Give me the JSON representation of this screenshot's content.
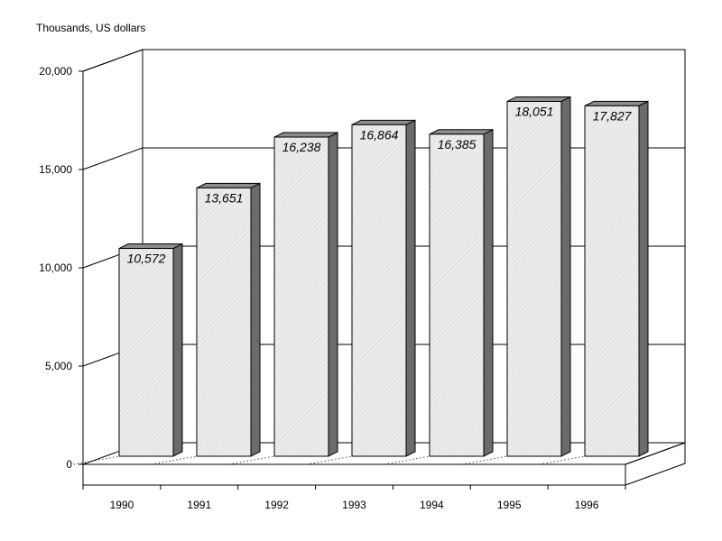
{
  "chart_data": {
    "type": "bar",
    "title": "",
    "unit_label": "Thousands, US dollars",
    "xlabel": "",
    "ylabel": "Thousands, US dollars",
    "categories": [
      "1990",
      "1991",
      "1992",
      "1993",
      "1994",
      "1995",
      "1996"
    ],
    "values": [
      10572,
      13651,
      16238,
      16864,
      16385,
      18051,
      17827
    ],
    "value_labels": [
      "10,572",
      "13,651",
      "16,238",
      "16,864",
      "16,385",
      "18,051",
      "17,827"
    ],
    "ylim": [
      0,
      20000
    ],
    "yticks": [
      0,
      5000,
      10000,
      15000,
      20000
    ],
    "ytick_labels": [
      "0",
      "5,000",
      "10,000",
      "15,000",
      "20,000"
    ],
    "grid": true,
    "legend": "none",
    "three_d": true,
    "colors": {
      "bar_front": "#e8e8e8",
      "bar_side": "#6b6b6b",
      "bar_top": "#8c8c8c",
      "axis": "#000000",
      "background": "#ffffff"
    }
  }
}
